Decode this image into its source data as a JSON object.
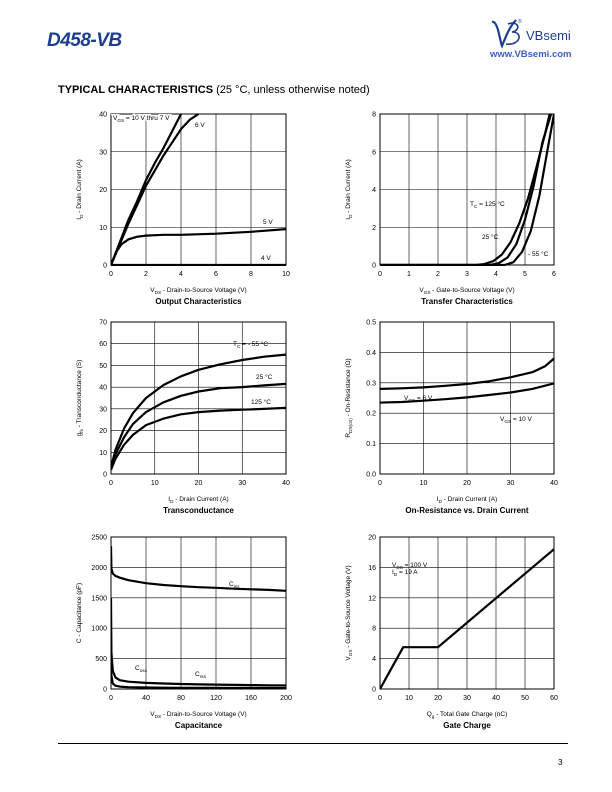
{
  "header": {
    "part_number": "D458-VB",
    "brand": "VBsemi",
    "website": "www.VBsemi.com",
    "registered_mark": "®"
  },
  "section": {
    "title_bold": "TYPICAL CHARACTERISTICS",
    "title_note": " (25 °C, unless otherwise noted)"
  },
  "page_number": "3",
  "chart_data": [
    {
      "id": "output",
      "type": "line",
      "title": "Output Characteristics",
      "xlabel": "V_DS - Drain-to-Source Voltage (V)",
      "ylabel": "I_D - Drain Current (A)",
      "xlim": [
        0,
        10
      ],
      "ylim": [
        0,
        40
      ],
      "xticks": [
        "0",
        "2",
        "4",
        "6",
        "8",
        "10"
      ],
      "yticks": [
        "0",
        "10",
        "20",
        "30",
        "40"
      ],
      "series": [
        {
          "name": "V_GS = 10 V thru 7 V",
          "x": [
            0,
            0.5,
            1,
            1.5,
            2,
            2.5,
            3,
            3.5,
            4
          ],
          "y": [
            0,
            6,
            12,
            17,
            22.5,
            27,
            31,
            35.5,
            40
          ]
        },
        {
          "name": "6 V",
          "x": [
            0,
            0.5,
            1,
            1.5,
            2,
            2.5,
            3,
            3.5,
            4,
            4.5,
            5
          ],
          "y": [
            0,
            5.5,
            11,
            16,
            21,
            25,
            29,
            32.5,
            36,
            38.5,
            40
          ]
        },
        {
          "name": "5 V",
          "x": [
            0,
            0.3,
            0.6,
            1,
            1.5,
            2,
            3,
            4,
            6,
            8,
            10
          ],
          "y": [
            0,
            3.5,
            5.5,
            6.8,
            7.5,
            7.8,
            8.0,
            8.0,
            8.3,
            8.8,
            9.5
          ]
        },
        {
          "name": "4 V",
          "x": [
            0,
            2,
            4,
            6,
            8,
            10
          ],
          "y": [
            0,
            0,
            0,
            0,
            0,
            0
          ]
        }
      ],
      "annotations": [
        "V_GS = 10 V thru 7 V",
        "6 V",
        "5 V",
        "4 V"
      ]
    },
    {
      "id": "transfer",
      "type": "line",
      "title": "Transfer Characteristics",
      "xlabel": "V_GS - Gate-to-Source Voltage (V)",
      "ylabel": "I_D - Drain Current (A)",
      "xlim": [
        0,
        6
      ],
      "ylim": [
        0,
        8
      ],
      "xticks": [
        "0",
        "1",
        "2",
        "3",
        "4",
        "5",
        "6"
      ],
      "yticks": [
        "0",
        "2",
        "4",
        "6",
        "8"
      ],
      "series": [
        {
          "name": "T_C = 125 °C",
          "x": [
            0,
            3.3,
            3.6,
            3.9,
            4.2,
            4.5,
            4.8,
            5.1,
            5.4,
            5.7,
            5.85
          ],
          "y": [
            0,
            0,
            0.05,
            0.2,
            0.55,
            1.2,
            2.2,
            3.5,
            5.2,
            7.0,
            8
          ]
        },
        {
          "name": "25 °C",
          "x": [
            0,
            3.8,
            4.1,
            4.4,
            4.7,
            5.0,
            5.3,
            5.6,
            5.9
          ],
          "y": [
            0,
            0,
            0.1,
            0.4,
            1.1,
            2.4,
            4.2,
            6.5,
            8
          ]
        },
        {
          "name": "- 55 °C",
          "x": [
            0,
            4.3,
            4.6,
            4.9,
            5.2,
            5.5,
            5.8,
            6.0
          ],
          "y": [
            0,
            0,
            0.15,
            0.7,
            1.8,
            3.7,
            6.3,
            8
          ]
        }
      ],
      "annotations": [
        "T_C = 125 °C",
        "25 °C",
        "- 55 °C"
      ]
    },
    {
      "id": "transconductance",
      "type": "line",
      "title": "Transconductance",
      "xlabel": "I_D - Drain Current (A)",
      "ylabel": "g_fs - Transconductance (S)",
      "xlim": [
        0,
        40
      ],
      "ylim": [
        0,
        70
      ],
      "xticks": [
        "0",
        "10",
        "20",
        "30",
        "40"
      ],
      "yticks": [
        "0",
        "10",
        "20",
        "30",
        "40",
        "50",
        "60",
        "70"
      ],
      "series": [
        {
          "name": "T_C = - 55 °C",
          "x": [
            0,
            1,
            3,
            5,
            8,
            12,
            16,
            20,
            25,
            30,
            35,
            40
          ],
          "y": [
            3,
            11,
            21,
            28,
            35,
            41,
            45,
            48,
            50.5,
            52.5,
            54,
            55
          ]
        },
        {
          "name": "25 °C",
          "x": [
            0,
            1,
            3,
            5,
            8,
            12,
            16,
            20,
            25,
            30,
            35,
            40
          ],
          "y": [
            2,
            9,
            17,
            23,
            28.5,
            33,
            36,
            38,
            39.5,
            40,
            40.8,
            41.5
          ]
        },
        {
          "name": "125 °C",
          "x": [
            0,
            1,
            3,
            5,
            8,
            12,
            16,
            20,
            25,
            30,
            35,
            40
          ],
          "y": [
            2,
            7,
            13.5,
            18,
            22.5,
            25.5,
            27.5,
            28.5,
            29.2,
            29.6,
            30,
            30.5
          ]
        }
      ],
      "annotations": [
        "T_C = - 55 °C",
        "25 °C",
        "125 °C"
      ]
    },
    {
      "id": "on-resistance",
      "type": "line",
      "title": "On-Resistance vs. Drain Current",
      "xlabel": "I_D - Drain Current (A)",
      "ylabel": "R_DS(on) - On-Resistance (Ω)",
      "xlim": [
        0,
        40
      ],
      "ylim": [
        0,
        0.5
      ],
      "xticks": [
        "0",
        "10",
        "20",
        "30",
        "40"
      ],
      "yticks": [
        "0.0",
        "0.1",
        "0.2",
        "0.3",
        "0.4",
        "0.5"
      ],
      "series": [
        {
          "name": "V_GS = 6 V",
          "x": [
            0,
            5,
            10,
            15,
            20,
            25,
            30,
            35,
            38,
            40
          ],
          "y": [
            0.28,
            0.282,
            0.285,
            0.29,
            0.296,
            0.305,
            0.318,
            0.335,
            0.355,
            0.38
          ]
        },
        {
          "name": "V_GS = 10 V",
          "x": [
            0,
            5,
            10,
            15,
            20,
            25,
            30,
            35,
            40
          ],
          "y": [
            0.235,
            0.237,
            0.241,
            0.246,
            0.252,
            0.26,
            0.268,
            0.28,
            0.298
          ]
        }
      ],
      "annotations": [
        "V_GS = 6 V",
        "V_GS = 10 V"
      ]
    },
    {
      "id": "capacitance",
      "type": "line",
      "title": "Capacitance",
      "xlabel": "V_DS - Drain-to-Source Voltage (V)",
      "ylabel": "C - Capacitance (pF)",
      "xlim": [
        0,
        200
      ],
      "ylim": [
        0,
        2500
      ],
      "xticks": [
        "0",
        "40",
        "80",
        "120",
        "160",
        "200"
      ],
      "yticks": [
        "0",
        "500",
        "1000",
        "1500",
        "2000",
        "2500"
      ],
      "series": [
        {
          "name": "C_iss",
          "x": [
            0,
            0.5,
            2,
            5,
            10,
            20,
            40,
            60,
            80,
            100,
            120,
            140,
            160,
            180,
            200
          ],
          "y": [
            2350,
            1980,
            1900,
            1860,
            1830,
            1790,
            1740,
            1710,
            1690,
            1675,
            1665,
            1650,
            1640,
            1630,
            1615
          ]
        },
        {
          "name": "C_oss",
          "x": [
            0,
            0.5,
            2,
            5,
            10,
            20,
            40,
            60,
            80,
            100,
            120,
            140,
            160,
            180,
            200
          ],
          "y": [
            1500,
            600,
            300,
            190,
            145,
            120,
            100,
            90,
            82,
            76,
            72,
            68,
            64,
            61,
            58
          ]
        },
        {
          "name": "C_rss",
          "x": [
            0,
            0.5,
            2,
            5,
            10,
            20,
            40,
            60,
            80,
            100,
            120,
            140,
            160,
            180,
            200
          ],
          "y": [
            400,
            220,
            90,
            55,
            40,
            30,
            24,
            22,
            20,
            19,
            18,
            17,
            16,
            16,
            15
          ]
        }
      ],
      "annotations": [
        "C_iss",
        "C_oss",
        "C_rss"
      ]
    },
    {
      "id": "gate-charge",
      "type": "line",
      "title": "Gate Charge",
      "xlabel": "Q_g - Total Gate Charge (nC)",
      "ylabel": "V_GS - Gate-to-Source Voltage (V)",
      "xlim": [
        0,
        60
      ],
      "ylim": [
        0,
        20
      ],
      "xticks": [
        "0",
        "10",
        "20",
        "30",
        "40",
        "50",
        "60"
      ],
      "yticks": [
        "0",
        "4",
        "8",
        "12",
        "16",
        "20"
      ],
      "series": [
        {
          "name": "V_GS",
          "x": [
            0,
            8,
            20,
            60
          ],
          "y": [
            0,
            5.5,
            5.5,
            18.4
          ]
        }
      ],
      "annotations": [
        "V_DS = 100 V",
        "I_D = 19 A"
      ]
    }
  ]
}
